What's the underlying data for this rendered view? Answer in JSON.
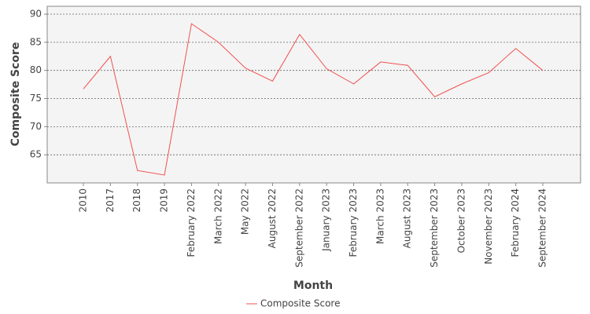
{
  "chart_data": {
    "type": "line",
    "x_label": "Month",
    "y_label": "Composite Score",
    "categories": [
      "2010",
      "2017",
      "2018",
      "2019",
      "February 2022",
      "March 2022",
      "May 2022",
      "August 2022",
      "September 2022",
      "January 2023",
      "February 2023",
      "March 2023",
      "August 2023",
      "September 2023",
      "October 2023",
      "November 2023",
      "February 2024",
      "September 2024"
    ],
    "series": [
      {
        "name": "Composite Score",
        "color": "#f25050",
        "values": [
          76.7,
          82.5,
          62.2,
          61.4,
          88.3,
          85.0,
          80.4,
          78.1,
          86.4,
          80.3,
          77.6,
          81.5,
          80.9,
          75.3,
          77.6,
          79.6,
          83.9,
          80.0
        ]
      }
    ],
    "ylim": [
      60,
      91.4
    ],
    "yticks": [
      65,
      70,
      75,
      80,
      85,
      90
    ],
    "grid": true,
    "legend": "bottom"
  }
}
